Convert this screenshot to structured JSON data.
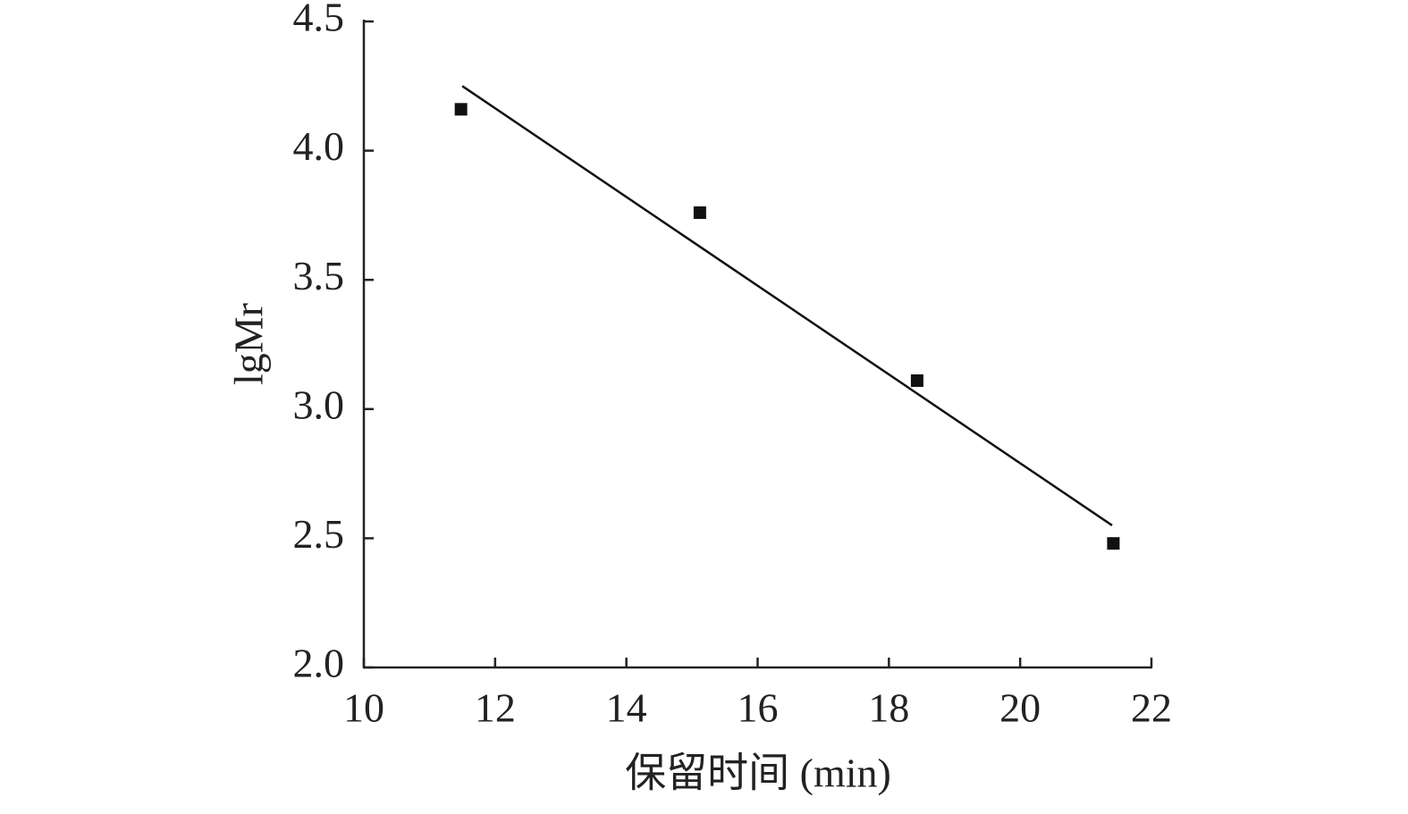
{
  "chart_data": {
    "type": "scatter",
    "x_label": "保留时间 (min)",
    "y_label": "lgMr",
    "series": [
      {
        "type": "scatter",
        "color": "#111111",
        "x": [
          11.48,
          15.12,
          18.43,
          21.42
        ],
        "values": [
          4.16,
          3.76,
          3.11,
          2.48
        ]
      },
      {
        "type": "line",
        "color": "#111111",
        "x": [
          11.5,
          21.4
        ],
        "values": [
          4.25,
          2.55
        ]
      }
    ],
    "xlim": [
      10,
      22
    ],
    "xticks": [
      10,
      12,
      14,
      16,
      18,
      20,
      22
    ],
    "ylim": [
      2,
      4.5
    ],
    "yticks": [
      {
        "value": 2,
        "label": "2.0"
      },
      {
        "value": 2.5,
        "label": "2.5"
      },
      {
        "value": 3,
        "label": "3.0"
      },
      {
        "value": 3.5,
        "label": "3.5"
      },
      {
        "value": 4,
        "label": "4.0"
      },
      {
        "value": 4.5,
        "label": "4.5"
      }
    ]
  }
}
